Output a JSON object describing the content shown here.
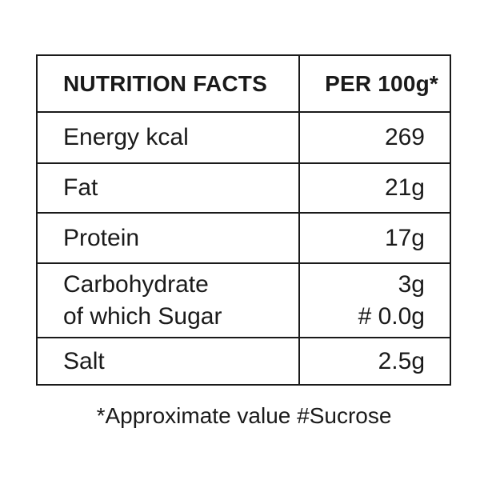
{
  "table": {
    "header": {
      "label": "NUTRITION FACTS",
      "value": "PER 100g*"
    },
    "rows": [
      {
        "label": "Energy kcal",
        "value": "269"
      },
      {
        "label": "Fat",
        "value": "21g"
      },
      {
        "label": "Protein",
        "value": "17g"
      },
      {
        "label": "Carbohydrate",
        "sublabel": "of which Sugar",
        "value": "3g",
        "subvalue": "# 0.0g"
      },
      {
        "label": "Salt",
        "value": "2.5g"
      }
    ]
  },
  "footnote": "*Approximate value #Sucrose"
}
